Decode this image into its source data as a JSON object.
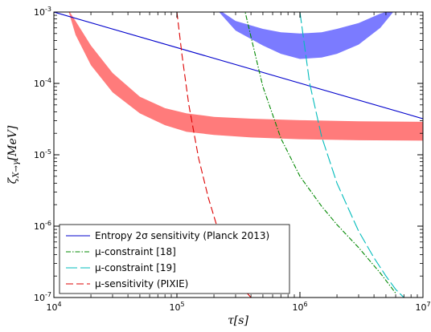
{
  "chart_data": {
    "type": "line",
    "xscale": "log",
    "yscale": "log",
    "xlim": [
      10000,
      10000000
    ],
    "ylim": [
      1e-07,
      0.001
    ],
    "xlabel": "τ[s]",
    "ylabel": "ζ_{X→γ}[MeV]",
    "x_ticks": [
      {
        "value": 10000,
        "label": "10",
        "exp": "4"
      },
      {
        "value": 100000,
        "label": "10",
        "exp": "5"
      },
      {
        "value": 1000000,
        "label": "10",
        "exp": "6"
      },
      {
        "value": 10000000,
        "label": "10",
        "exp": "7"
      }
    ],
    "y_ticks": [
      {
        "value": 1e-07,
        "label": "10",
        "exp": "-7"
      },
      {
        "value": 1e-06,
        "label": "10",
        "exp": "-6"
      },
      {
        "value": 1e-05,
        "label": "10",
        "exp": "-5"
      },
      {
        "value": 0.0001,
        "label": "10",
        "exp": "-4"
      },
      {
        "value": 0.001,
        "label": "10",
        "exp": "-3"
      }
    ],
    "bands": [
      {
        "name": "blue band",
        "color": "#7b7bff",
        "x": [
          200000,
          300000,
          500000,
          700000,
          1000000,
          1500000,
          2000000,
          3000000,
          4500000,
          6000000
        ],
        "upper": [
          0.0012,
          0.00075,
          0.00058,
          0.00052,
          0.0005,
          0.00052,
          0.00058,
          0.0007,
          0.00095,
          0.0011
        ],
        "lower": [
          0.0012,
          0.00055,
          0.00034,
          0.00026,
          0.00022,
          0.00023,
          0.00026,
          0.00035,
          0.0006,
          0.0011
        ]
      },
      {
        "name": "red band",
        "color": "#ff7b7b",
        "x": [
          13000,
          15000,
          20000,
          30000,
          50000,
          80000,
          120000,
          200000,
          400000,
          1000000,
          3000000,
          10000000
        ],
        "upper": [
          0.0011,
          0.00075,
          0.00034,
          0.00014,
          6.5e-05,
          4.5e-05,
          3.8e-05,
          3.4e-05,
          3.2e-05,
          3.05e-05,
          2.95e-05,
          2.9e-05
        ],
        "lower": [
          0.0011,
          0.00048,
          0.00018,
          7.5e-05,
          3.8e-05,
          2.6e-05,
          2.1e-05,
          1.9e-05,
          1.75e-05,
          1.65e-05,
          1.6e-05,
          1.58e-05
        ]
      }
    ],
    "series": [
      {
        "name": "Entropy 2σ sensitivity (Planck 2013)",
        "color": "#0000cc",
        "dash": "",
        "x": [
          10000,
          10000000
        ],
        "y": [
          0.001,
          3.2e-05
        ]
      },
      {
        "name": "μ-constraint [18]",
        "color": "#008800",
        "dash": "6,2,1.5,2",
        "x": [
          350000,
          400000,
          500000,
          700000,
          1000000,
          1500000,
          2000000,
          3000000,
          4500000,
          6000000
        ],
        "y": [
          0.0012,
          0.00045,
          9e-05,
          1.7e-05,
          5e-06,
          1.9e-06,
          1.05e-06,
          5e-07,
          2.2e-07,
          1.15e-07
        ]
      },
      {
        "name": "μ-constraint [19]",
        "color": "#00bbbb",
        "dash": "14,4",
        "x": [
          1000000,
          1200000,
          1500000,
          2000000,
          2500000,
          3000000,
          4000000,
          5000000,
          6000000,
          7000000
        ],
        "y": [
          0.001,
          0.0001,
          1.8e-05,
          4e-06,
          1.7e-06,
          8.5e-07,
          3.6e-07,
          2e-07,
          1.3e-07,
          1e-07
        ]
      },
      {
        "name": "μ-sensitivity (PIXIE)",
        "color": "#dd0000",
        "dash": "9,4",
        "x": [
          100000,
          110000,
          125000,
          150000,
          180000,
          220000,
          260000,
          300000,
          350000,
          400000
        ],
        "y": [
          0.001,
          0.00025,
          5e-05,
          9e-06,
          2.5e-06,
          8e-07,
          3.5e-07,
          2e-07,
          1.3e-07,
          1e-07
        ]
      }
    ],
    "legend": {
      "position": "bottom-left"
    }
  }
}
